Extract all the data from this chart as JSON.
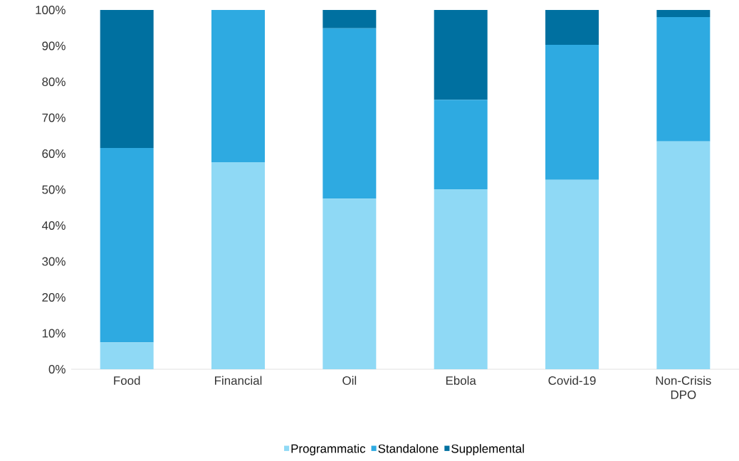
{
  "chart_data": {
    "type": "bar",
    "stacked": true,
    "categories": [
      "Food",
      "Financial",
      "Oil",
      "Ebola",
      "Covid-19",
      "Non-Crisis DPO"
    ],
    "series": [
      {
        "name": "Programmatic",
        "color": "#8fd9f5",
        "values": [
          7.5,
          57.6,
          47.5,
          50.1,
          52.7,
          63.4
        ]
      },
      {
        "name": "Standalone",
        "color": "#2eaae1",
        "values": [
          54.1,
          42.4,
          47.4,
          24.9,
          37.6,
          34.6
        ]
      },
      {
        "name": "Supplemental",
        "color": "#0070a0",
        "values": [
          38.4,
          0,
          5.1,
          25.0,
          9.7,
          2.0
        ]
      }
    ],
    "ylim": [
      0,
      100
    ],
    "yticks": [
      {
        "value": 0,
        "label": "0%"
      },
      {
        "value": 10,
        "label": "10%"
      },
      {
        "value": 20,
        "label": "20%"
      },
      {
        "value": 30,
        "label": "30%"
      },
      {
        "value": 40,
        "label": "40%"
      },
      {
        "value": 50,
        "label": "50%"
      },
      {
        "value": 60,
        "label": "60%"
      },
      {
        "value": 70,
        "label": "70%"
      },
      {
        "value": 80,
        "label": "80%"
      },
      {
        "value": 90,
        "label": "90%"
      },
      {
        "value": 100,
        "label": "100%"
      }
    ],
    "legend": "bottom"
  }
}
